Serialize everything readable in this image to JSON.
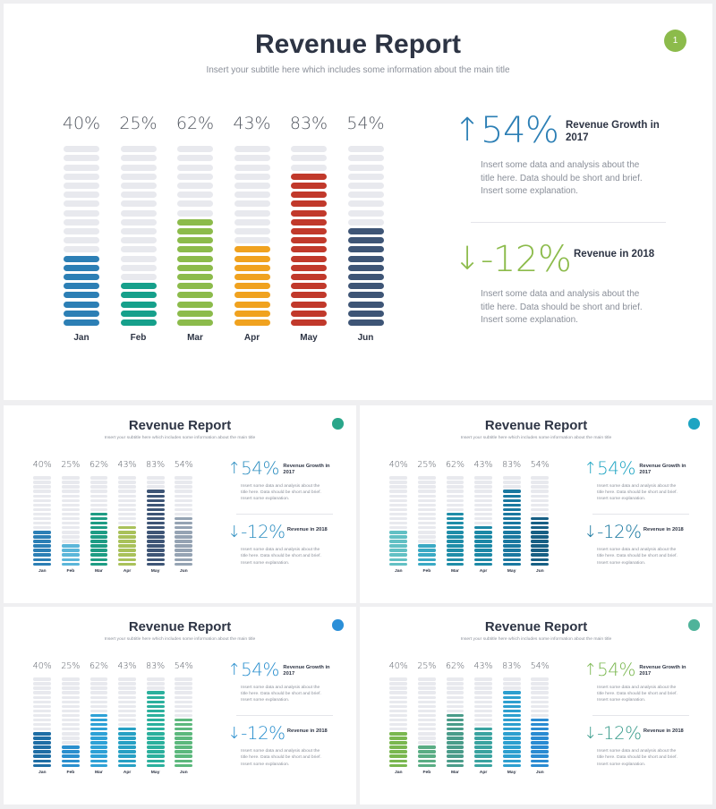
{
  "slides": [
    {
      "title": "Revenue Report",
      "subtitle": "Insert your subtitle here which includes some information about the main title",
      "page": "1",
      "badge_color": "#8cbb4b",
      "colors": [
        "#2c7fb5",
        "#16a08b",
        "#8cbb4b",
        "#f0a21f",
        "#c1392b",
        "#3e5576"
      ],
      "stat1": {
        "arrow": "↑",
        "value": "54%",
        "title": "Revenue Growth in 2017",
        "desc": "Insert some data and analysis about the title here. Data should be short and brief. Insert some explanation.",
        "color": "#2c7fb5"
      },
      "stat2": {
        "arrow": "↓",
        "value": "-12%",
        "title": "Revenue in 2018",
        "desc": "Insert some data and analysis about the title here. Data should be short and brief. Insert some explanation.",
        "color": "#8cbb4b"
      }
    },
    {
      "title": "Revenue Report",
      "subtitle": "Insert your subtitle here which includes some information about the main title",
      "page": "",
      "badge_color": "#2aa68a",
      "colors": [
        "#2c7fb5",
        "#5bb6d9",
        "#1e9c84",
        "#a9c15a",
        "#3e5576",
        "#95a3b3"
      ],
      "stat1": {
        "arrow": "↑",
        "value": "54%",
        "title": "Revenue Growth in 2017",
        "desc": "Insert some data and analysis about the title here. Data should be short and brief. Insert some explanation.",
        "color": "#2f8fc1"
      },
      "stat2": {
        "arrow": "↓",
        "value": "-12%",
        "title": "Revenue in 2018",
        "desc": "Insert some data and analysis about the title here. Data should be short and brief. Insert some explanation.",
        "color": "#2f8fc1"
      }
    },
    {
      "title": "Revenue Report",
      "subtitle": "Insert your subtitle here which includes some information about the main title",
      "page": "",
      "badge_color": "#1da4c2",
      "colors": [
        "#62c0c4",
        "#3aa9c4",
        "#1f8da8",
        "#1c88a6",
        "#1a78a0",
        "#175f84"
      ],
      "stat1": {
        "arrow": "↑",
        "value": "54%",
        "title": "Revenue Growth in 2017",
        "desc": "Insert some data and analysis about the title here. Data should be short and brief. Insert some explanation.",
        "color": "#1da4c2"
      },
      "stat2": {
        "arrow": "↓",
        "value": "-12%",
        "title": "Revenue in 2018",
        "desc": "Insert some data and analysis about the title here. Data should be short and brief. Insert some explanation.",
        "color": "#1a78a0"
      }
    },
    {
      "title": "Revenue Report",
      "subtitle": "Insert your subtitle here which includes some information about the main title",
      "page": "",
      "badge_color": "#2b8fd8",
      "colors": [
        "#1f6ea5",
        "#2a8fce",
        "#2ea1d6",
        "#27a0c4",
        "#2bb09d",
        "#5cb87d"
      ],
      "stat1": {
        "arrow": "↑",
        "value": "54%",
        "title": "Revenue Growth in 2017",
        "desc": "Insert some data and analysis about the title here. Data should be short and brief. Insert some explanation.",
        "color": "#2a8fce"
      },
      "stat2": {
        "arrow": "↓",
        "value": "-12%",
        "title": "Revenue in 2018",
        "desc": "Insert some data and analysis about the title here. Data should be short and brief. Insert some explanation.",
        "color": "#2a8fce"
      }
    },
    {
      "title": "Revenue Report",
      "subtitle": "Insert your subtitle here which includes some information about the main title",
      "page": "",
      "badge_color": "#4fb39a",
      "colors": [
        "#7ab74f",
        "#5aad84",
        "#4a9c8a",
        "#3aa3a0",
        "#2d9fcf",
        "#2a8bd2"
      ],
      "stat1": {
        "arrow": "↑",
        "value": "54%",
        "title": "Revenue Growth in 2017",
        "desc": "Insert some data and analysis about the title here. Data should be short and brief. Insert some explanation.",
        "color": "#7ab74f"
      },
      "stat2": {
        "arrow": "↓",
        "value": "-12%",
        "title": "Revenue in 2018",
        "desc": "Insert some data and analysis about the title here. Data should be short and brief. Insert some explanation.",
        "color": "#3a9c8c"
      }
    }
  ],
  "chart_data": {
    "type": "bar",
    "title": "",
    "categories": [
      "Jan",
      "Feb",
      "Mar",
      "Apr",
      "May",
      "Jun"
    ],
    "values": [
      40,
      25,
      62,
      43,
      83,
      54
    ],
    "value_labels": [
      "40%",
      "25%",
      "62%",
      "43%",
      "83%",
      "54%"
    ],
    "ylim": [
      0,
      100
    ],
    "segments_per_bar": 20,
    "track_color": "#e8e9ee"
  }
}
